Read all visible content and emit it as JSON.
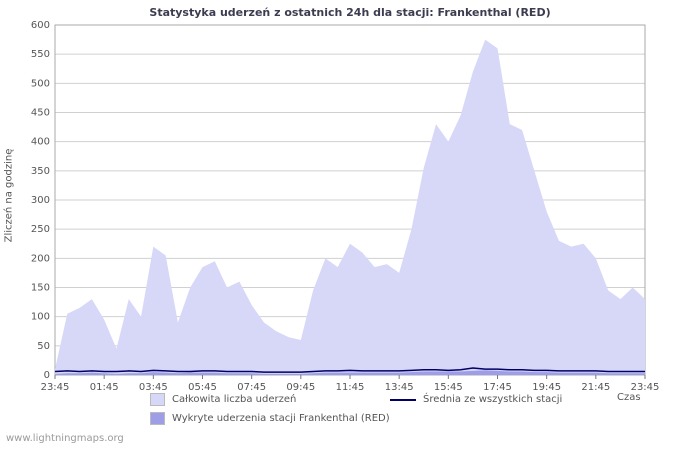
{
  "footer": {
    "watermark": "www.lightningmaps.org"
  },
  "chart_data": {
    "type": "area",
    "title": "Statystyka uderzeń z ostatnich 24h dla stacji: Frankenthal (RED)",
    "xlabel": "Czas",
    "ylabel": "Zliczeń na godzinę",
    "ylim": [
      0,
      600
    ],
    "ytick_step": 50,
    "grid": "horizontal",
    "legend_position": "bottom",
    "x_labels": [
      "23:45",
      "01:45",
      "03:45",
      "05:45",
      "07:45",
      "09:45",
      "11:45",
      "13:45",
      "15:45",
      "17:45",
      "19:45",
      "21:45",
      "23:45"
    ],
    "colors": {
      "total_area": "#d7d7f8",
      "station_area": "#9e9ee8",
      "average_line": "#000066",
      "grid": "#d0d0d0",
      "axis": "#aaaaaa"
    },
    "series": [
      {
        "name": "Całkowita liczba uderzeń",
        "type": "area",
        "color": "#d7d7f8",
        "values": [
          10,
          105,
          115,
          130,
          95,
          45,
          130,
          100,
          220,
          205,
          90,
          150,
          185,
          195,
          150,
          160,
          120,
          90,
          75,
          65,
          60,
          145,
          200,
          185,
          225,
          210,
          185,
          190,
          175,
          250,
          355,
          430,
          400,
          445,
          520,
          575,
          560,
          430,
          420,
          350,
          280,
          230,
          220,
          225,
          200,
          145,
          130,
          150,
          130
        ]
      },
      {
        "name": "Wykryte uderzenia stacji Frankenthal (RED)",
        "type": "area",
        "color": "#9e9ee8",
        "values": [
          2,
          3,
          3,
          4,
          3,
          2,
          3,
          3,
          5,
          4,
          3,
          4,
          4,
          4,
          3,
          3,
          3,
          2,
          2,
          2,
          2,
          3,
          4,
          4,
          4,
          4,
          4,
          4,
          4,
          5,
          6,
          6,
          6,
          6,
          7,
          8,
          7,
          6,
          6,
          5,
          5,
          4,
          4,
          4,
          4,
          3,
          3,
          3,
          3
        ]
      },
      {
        "name": "Średnia ze wszystkich stacji",
        "type": "line",
        "color": "#000066",
        "values": [
          6,
          7,
          6,
          7,
          6,
          6,
          7,
          6,
          8,
          7,
          6,
          6,
          7,
          7,
          6,
          6,
          6,
          5,
          5,
          5,
          5,
          6,
          7,
          7,
          8,
          7,
          7,
          7,
          7,
          8,
          9,
          9,
          8,
          9,
          12,
          10,
          10,
          9,
          9,
          8,
          8,
          7,
          7,
          7,
          7,
          6,
          6,
          6,
          6
        ]
      }
    ]
  }
}
